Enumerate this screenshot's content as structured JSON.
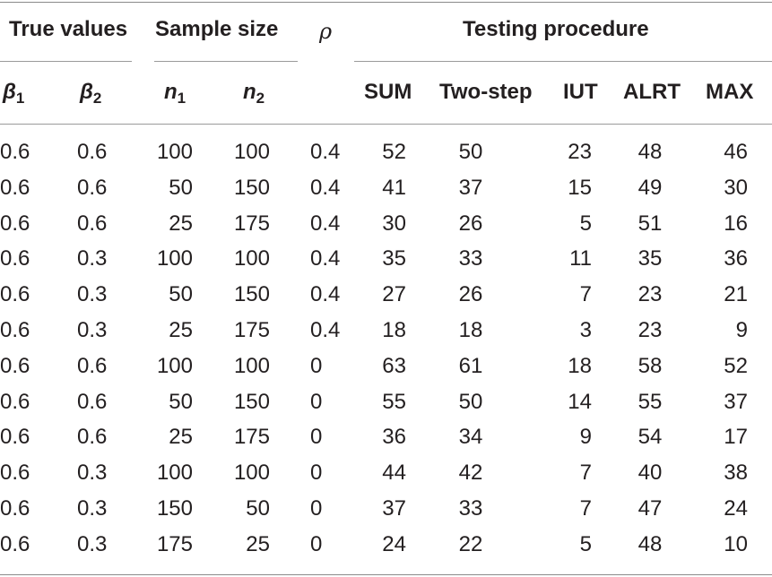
{
  "table": {
    "group_headers": {
      "true_values": "True values",
      "sample_size": "Sample size",
      "rho": "ρ",
      "testing_procedure": "Testing procedure"
    },
    "sub_headers": {
      "beta1": {
        "sym": "β",
        "sub": "1"
      },
      "beta2": {
        "sym": "β",
        "sub": "2"
      },
      "n1": {
        "sym": "n",
        "sub": "1"
      },
      "n2": {
        "sym": "n",
        "sub": "2"
      },
      "sum": "SUM",
      "two_step": "Two-step",
      "iut": "IUT",
      "alrt": "ALRT",
      "max": "MAX"
    },
    "rows": [
      [
        "0.6",
        "0.6",
        "100",
        "100",
        "0.4",
        "52",
        "50",
        "23",
        "48",
        "46"
      ],
      [
        "0.6",
        "0.6",
        "50",
        "150",
        "0.4",
        "41",
        "37",
        "15",
        "49",
        "30"
      ],
      [
        "0.6",
        "0.6",
        "25",
        "175",
        "0.4",
        "30",
        "26",
        "5",
        "51",
        "16"
      ],
      [
        "0.6",
        "0.3",
        "100",
        "100",
        "0.4",
        "35",
        "33",
        "11",
        "35",
        "36"
      ],
      [
        "0.6",
        "0.3",
        "50",
        "150",
        "0.4",
        "27",
        "26",
        "7",
        "23",
        "21"
      ],
      [
        "0.6",
        "0.3",
        "25",
        "175",
        "0.4",
        "18",
        "18",
        "3",
        "23",
        "9"
      ],
      [
        "0.6",
        "0.6",
        "100",
        "100",
        "0",
        "63",
        "61",
        "18",
        "58",
        "52"
      ],
      [
        "0.6",
        "0.6",
        "50",
        "150",
        "0",
        "55",
        "50",
        "14",
        "55",
        "37"
      ],
      [
        "0.6",
        "0.6",
        "25",
        "175",
        "0",
        "36",
        "34",
        "9",
        "54",
        "17"
      ],
      [
        "0.6",
        "0.3",
        "100",
        "100",
        "0",
        "44",
        "42",
        "7",
        "40",
        "38"
      ],
      [
        "0.6",
        "0.3",
        "150",
        "50",
        "0",
        "37",
        "33",
        "7",
        "47",
        "24"
      ],
      [
        "0.6",
        "0.3",
        "175",
        "25",
        "0",
        "24",
        "22",
        "5",
        "48",
        "10"
      ]
    ]
  }
}
